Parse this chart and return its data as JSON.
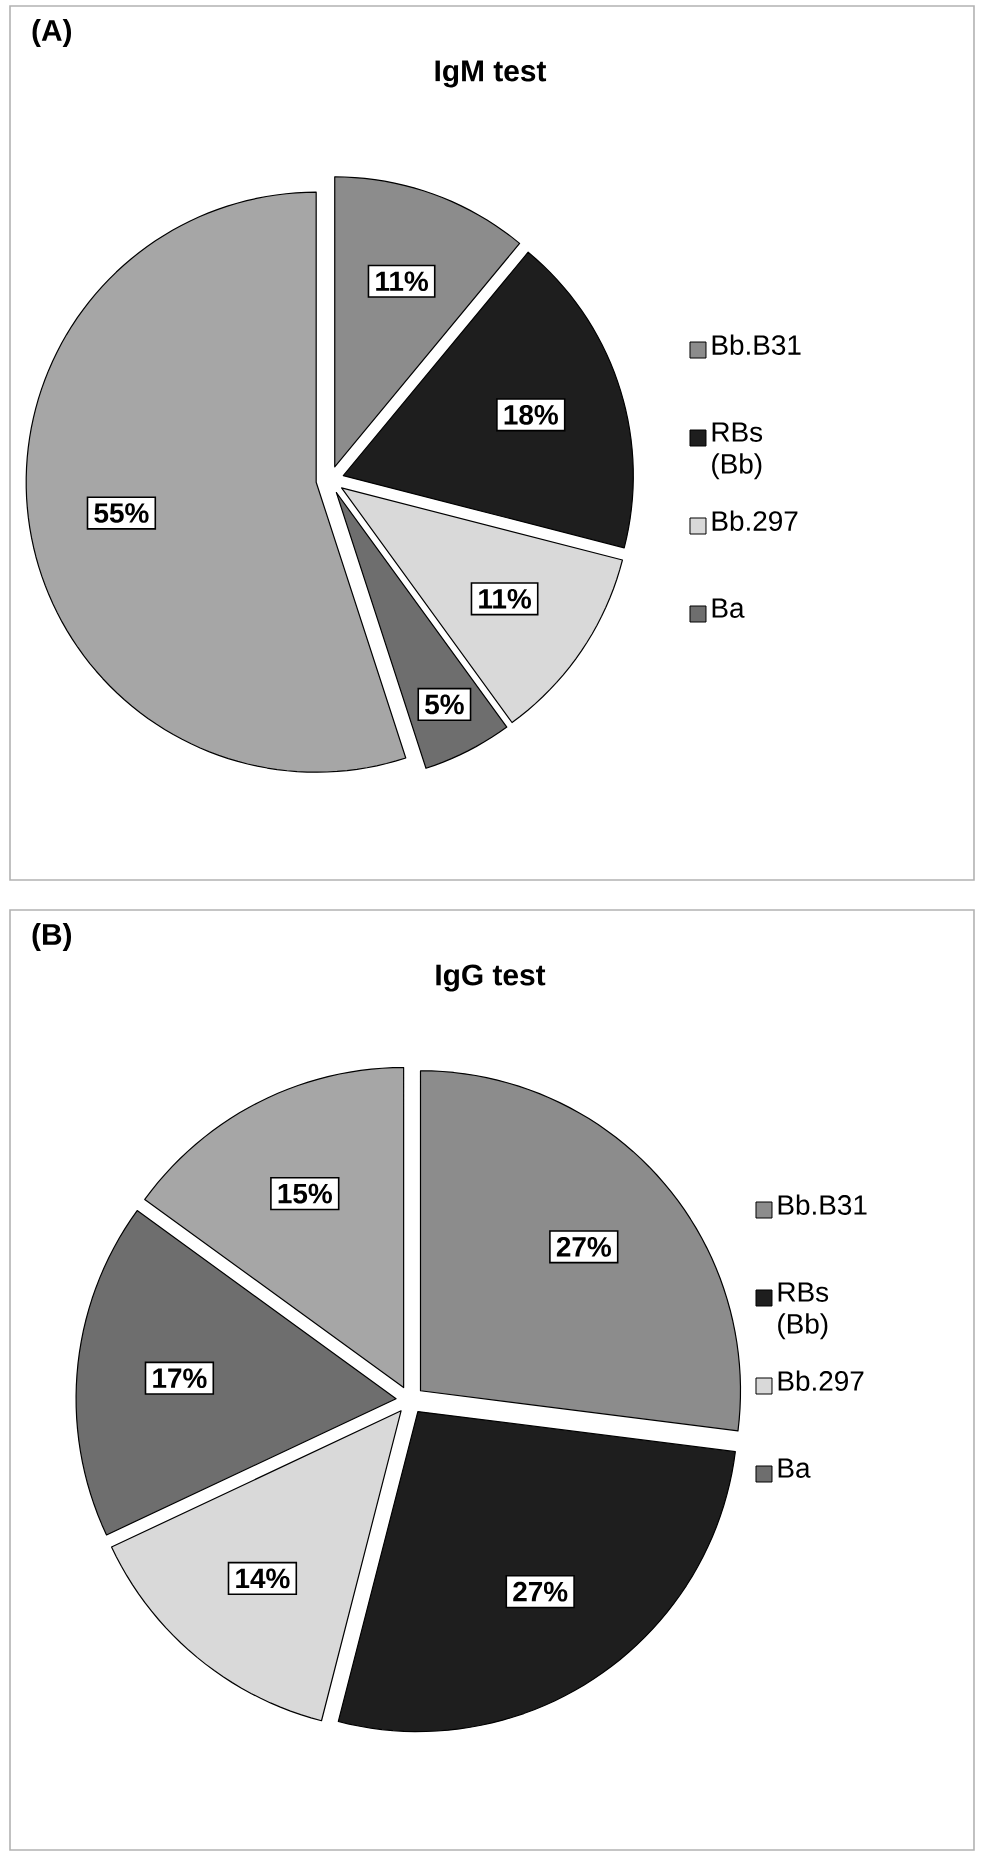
{
  "chart_data": [
    {
      "type": "pie",
      "title": "IgM test",
      "annotations": [
        "(A)"
      ],
      "categories": [
        "Bb.B31",
        "RBs (Bb)",
        "Bb.297",
        "Ba",
        null
      ],
      "values": [
        11,
        18,
        11,
        5,
        55
      ],
      "value_labels": [
        "11%",
        "18%",
        "11%",
        "5%",
        "55%"
      ],
      "colors": [
        "#8c8c8c",
        "#1e1e1e",
        "#d9d9d9",
        "#6e6e6e",
        "#a6a6a6"
      ],
      "legend": "right"
    },
    {
      "type": "pie",
      "title": "IgG test",
      "annotations": [
        "(B)"
      ],
      "categories": [
        "Bb.B31",
        "RBs (Bb)",
        "Bb.297",
        "Ba",
        null
      ],
      "values": [
        27,
        27,
        14,
        17,
        15
      ],
      "value_labels": [
        "27%",
        "27%",
        "14%",
        "17%",
        "15%"
      ],
      "colors": [
        "#8c8c8c",
        "#1e1e1e",
        "#d9d9d9",
        "#6e6e6e",
        "#a6a6a6"
      ],
      "legend": "right"
    }
  ]
}
